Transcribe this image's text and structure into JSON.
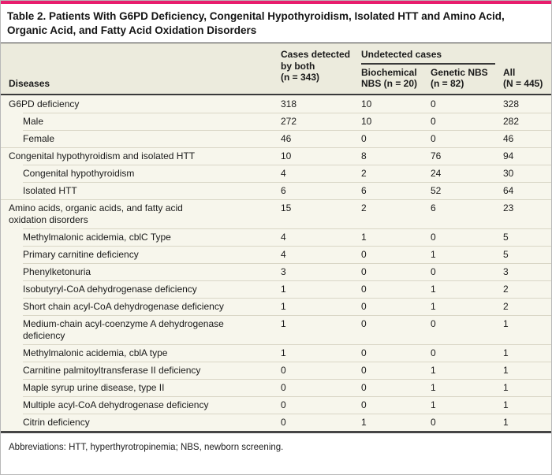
{
  "title": "Table 2. Patients With G6PD Deficiency, Congenital Hypothyroidism, Isolated HTT and Amino Acid,\nOrganic Acid, and Fatty Acid Oxidation Disorders",
  "header": {
    "diseases": "Diseases",
    "detected_both": "Cases detected\nby both\n(n = 343)",
    "undetected_group": "Undetected cases",
    "biochemical": "Biochemical\nNBS (n = 20)",
    "genetic": "Genetic NBS\n(n = 82)",
    "all": "All\n(N = 445)"
  },
  "table": {
    "rows": [
      {
        "label": "G6PD deficiency",
        "indent": 0,
        "values": [
          318,
          10,
          0,
          328
        ]
      },
      {
        "label": "Male",
        "indent": 1,
        "values": [
          272,
          10,
          0,
          282
        ]
      },
      {
        "label": "Female",
        "indent": 1,
        "values": [
          46,
          0,
          0,
          46
        ]
      },
      {
        "label": "Congenital hypothyroidism and isolated HTT",
        "indent": 0,
        "values": [
          10,
          8,
          76,
          94
        ]
      },
      {
        "label": "Congenital hypothyroidism",
        "indent": 1,
        "values": [
          4,
          2,
          24,
          30
        ]
      },
      {
        "label": "Isolated HTT",
        "indent": 1,
        "values": [
          6,
          6,
          52,
          64
        ]
      },
      {
        "label": "Amino acids, organic acids, and fatty acid\noxidation disorders",
        "indent": 0,
        "values": [
          15,
          2,
          6,
          23
        ]
      },
      {
        "label": "Methylmalonic acidemia, cblC Type",
        "indent": 1,
        "values": [
          4,
          1,
          0,
          5
        ]
      },
      {
        "label": "Primary carnitine deficiency",
        "indent": 1,
        "values": [
          4,
          0,
          1,
          5
        ]
      },
      {
        "label": "Phenylketonuria",
        "indent": 1,
        "values": [
          3,
          0,
          0,
          3
        ]
      },
      {
        "label": "Isobutyryl-CoA dehydrogenase deficiency",
        "indent": 1,
        "values": [
          1,
          0,
          1,
          2
        ]
      },
      {
        "label": "Short chain acyl-CoA dehydrogenase deficiency",
        "indent": 1,
        "values": [
          1,
          0,
          1,
          2
        ]
      },
      {
        "label": "Medium-chain acyl-coenzyme A dehydrogenase\ndeficiency",
        "indent": 1,
        "values": [
          1,
          0,
          0,
          1
        ]
      },
      {
        "label": "Methylmalonic acidemia, cblA type",
        "indent": 1,
        "values": [
          1,
          0,
          0,
          1
        ]
      },
      {
        "label": "Carnitine palmitoyltransferase II deficiency",
        "indent": 1,
        "values": [
          0,
          0,
          1,
          1
        ]
      },
      {
        "label": "Maple syrup urine disease, type II",
        "indent": 1,
        "values": [
          0,
          0,
          1,
          1
        ]
      },
      {
        "label": "Multiple acyl-CoA dehydrogenase deficiency",
        "indent": 1,
        "values": [
          0,
          0,
          1,
          1
        ]
      },
      {
        "label": "Citrin deficiency",
        "indent": 1,
        "values": [
          0,
          1,
          0,
          1
        ]
      }
    ]
  },
  "footnote": "Abbreviations: HTT, hyperthyrotropinemia; NBS, newborn screening.",
  "colors": {
    "accent_pink": "#e81d6d",
    "header_bg": "#ecebdd",
    "body_bg": "#f7f6ec",
    "row_line": "#d9d6c6",
    "rule_dark": "#3a3a3a"
  }
}
